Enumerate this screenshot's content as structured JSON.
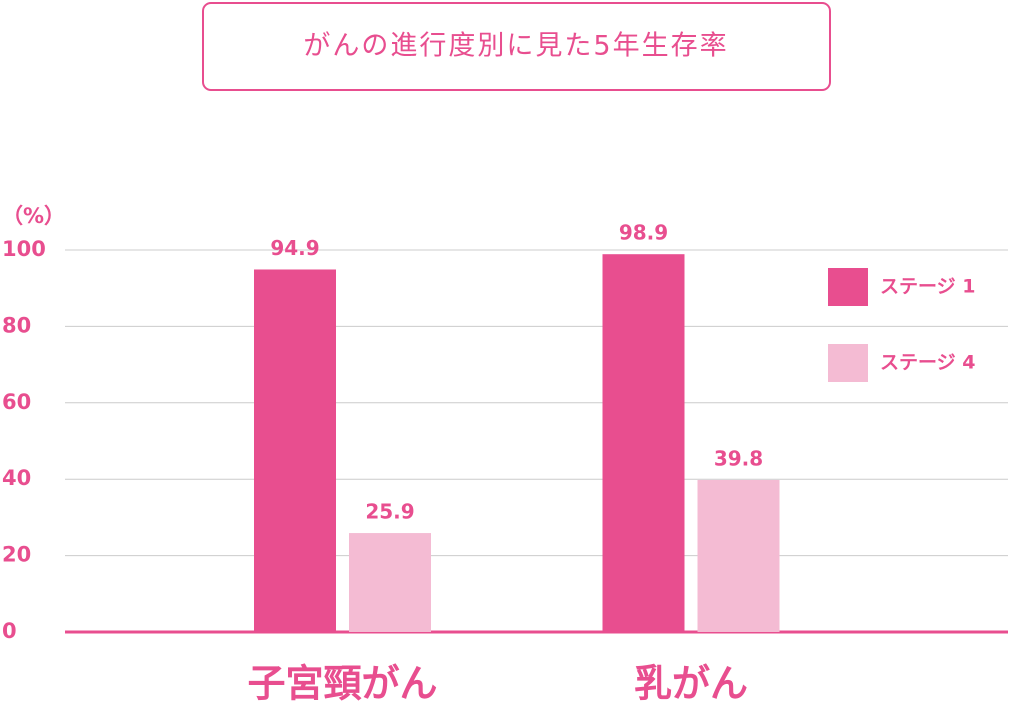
{
  "chart_data": {
    "type": "bar",
    "title": "がんの進行度別に見た5年生存率",
    "y_label": "（%）",
    "categories": [
      "子宮頸がん",
      "乳がん"
    ],
    "series": [
      {
        "name": "ステージ 1",
        "color": "#e84e8f",
        "values": [
          94.9,
          98.9
        ]
      },
      {
        "name": "ステージ 4",
        "color": "#f4bbd3",
        "values": [
          25.9,
          39.8
        ]
      }
    ],
    "ylim": [
      0,
      100
    ],
    "yticks": [
      0,
      20,
      40,
      60,
      80,
      100
    ],
    "grid": true,
    "legend": "upper right"
  }
}
